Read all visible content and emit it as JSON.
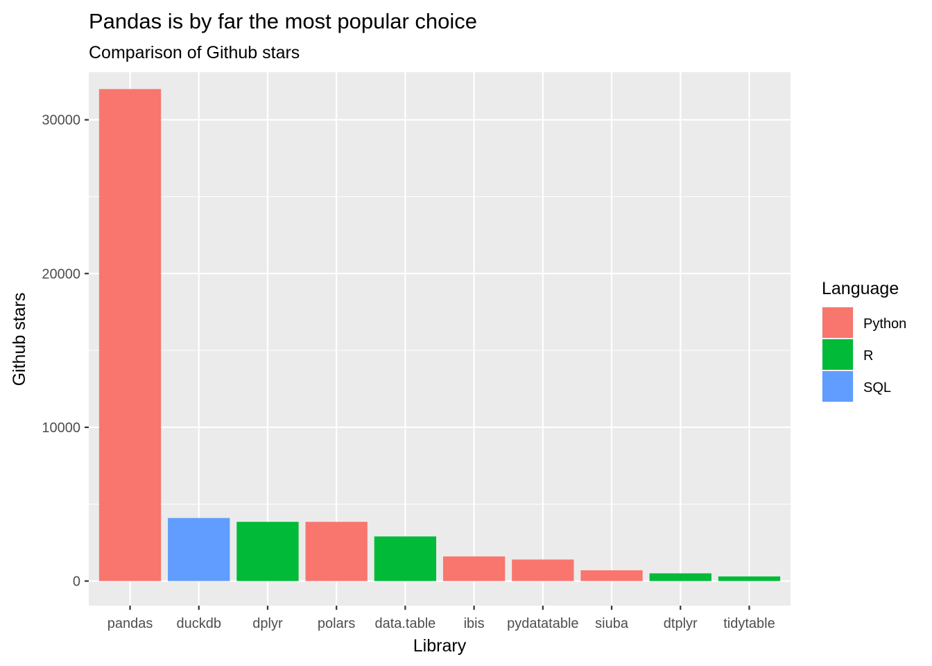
{
  "chart_data": {
    "type": "bar",
    "title": "Pandas is by far the most popular choice",
    "subtitle": "Comparison of Github stars",
    "xlabel": "Library",
    "ylabel": "Github stars",
    "ylim": [
      -1600,
      33100
    ],
    "yticks": [
      0,
      10000,
      20000,
      30000
    ],
    "grid": true,
    "legend": {
      "title": "Language",
      "placement": "right",
      "entries": [
        {
          "name": "Python",
          "color": "#F8766D"
        },
        {
          "name": "R",
          "color": "#00BA38"
        },
        {
          "name": "SQL",
          "color": "#619CFF"
        }
      ]
    },
    "categories": [
      "pandas",
      "duckdb",
      "dplyr",
      "polars",
      "data.table",
      "ibis",
      "pydatatable",
      "siuba",
      "dtplyr",
      "tidytable"
    ],
    "values": [
      32000,
      4100,
      3850,
      3850,
      2900,
      1600,
      1400,
      700,
      500,
      300
    ],
    "language": [
      "Python",
      "SQL",
      "R",
      "Python",
      "R",
      "Python",
      "Python",
      "Python",
      "R",
      "R"
    ]
  },
  "colors": {
    "panel_background": "#EBEBEB",
    "grid_major": "#FFFFFF",
    "tick_text": "#4D4D4D"
  }
}
